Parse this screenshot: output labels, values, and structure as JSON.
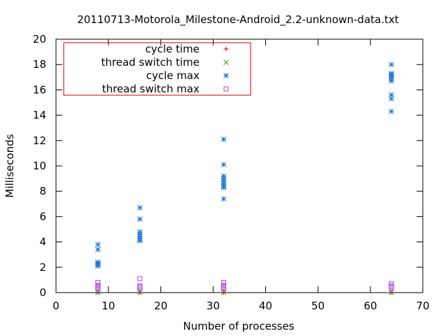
{
  "chart_data": {
    "type": "scatter",
    "title": "20110713-Motorola_Milestone-Android_2.2-unknown-data.txt",
    "xlabel": "Number of processes",
    "ylabel": "Milliseconds",
    "xlim": [
      0,
      70
    ],
    "ylim": [
      0,
      20
    ],
    "xticks": [
      0,
      10,
      20,
      30,
      40,
      50,
      60,
      70
    ],
    "yticks": [
      0,
      2,
      4,
      6,
      8,
      10,
      12,
      14,
      16,
      18,
      20
    ],
    "grid": false,
    "legend_position": "top-left",
    "series": [
      {
        "name": "cycle time",
        "marker": "plus",
        "color": "#cc0000",
        "points": [
          [
            8,
            0.02
          ],
          [
            16,
            0.02
          ],
          [
            32,
            0.02
          ],
          [
            64,
            0.02
          ]
        ]
      },
      {
        "name": "thread switch time",
        "marker": "cross",
        "color": "#2ca02c",
        "points": [
          [
            8,
            0.02
          ],
          [
            16,
            0.02
          ],
          [
            32,
            0.02
          ],
          [
            64,
            0.02
          ]
        ]
      },
      {
        "name": "cycle max",
        "marker": "star",
        "color": "#1f77d4",
        "points": [
          [
            8,
            3.8
          ],
          [
            8,
            3.4
          ],
          [
            8,
            2.4
          ],
          [
            8,
            2.3
          ],
          [
            8,
            2.2
          ],
          [
            8,
            2.1
          ],
          [
            16,
            6.7
          ],
          [
            16,
            5.8
          ],
          [
            16,
            4.8
          ],
          [
            16,
            4.6
          ],
          [
            16,
            4.4
          ],
          [
            16,
            4.2
          ],
          [
            16,
            4.1
          ],
          [
            32,
            12.1
          ],
          [
            32,
            10.1
          ],
          [
            32,
            9.2
          ],
          [
            32,
            9.0
          ],
          [
            32,
            8.8
          ],
          [
            32,
            8.6
          ],
          [
            32,
            8.4
          ],
          [
            32,
            8.3
          ],
          [
            32,
            7.4
          ],
          [
            64,
            18.0
          ],
          [
            64,
            17.3
          ],
          [
            64,
            17.2
          ],
          [
            64,
            17.1
          ],
          [
            64,
            16.9
          ],
          [
            64,
            16.7
          ],
          [
            64,
            15.6
          ],
          [
            64,
            15.3
          ],
          [
            64,
            14.3
          ]
        ]
      },
      {
        "name": "thread switch max",
        "marker": "square",
        "color": "#b040d8",
        "points": [
          [
            8,
            0.8
          ],
          [
            8,
            0.6
          ],
          [
            8,
            0.5
          ],
          [
            8,
            0.4
          ],
          [
            8,
            0.3
          ],
          [
            16,
            1.1
          ],
          [
            16,
            0.55
          ],
          [
            16,
            0.45
          ],
          [
            16,
            0.35
          ],
          [
            32,
            0.8
          ],
          [
            32,
            0.6
          ],
          [
            32,
            0.5
          ],
          [
            32,
            0.4
          ],
          [
            32,
            0.3
          ],
          [
            64,
            0.7
          ],
          [
            64,
            0.55
          ],
          [
            64,
            0.45
          ],
          [
            64,
            0.35
          ]
        ]
      }
    ]
  }
}
